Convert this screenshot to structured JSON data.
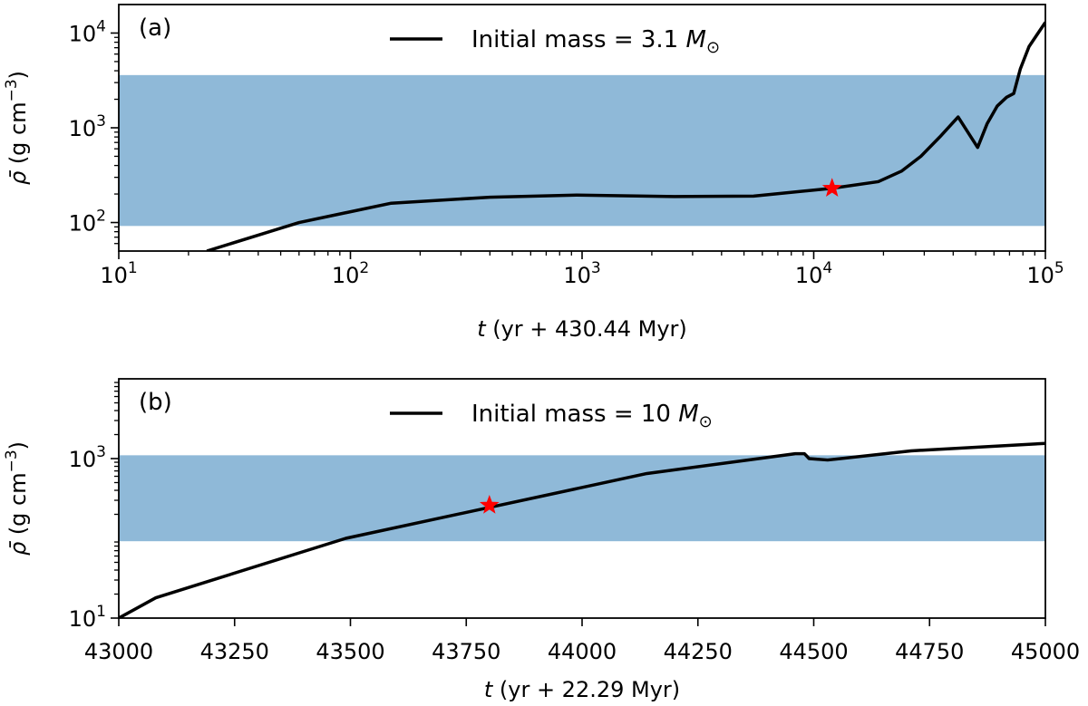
{
  "chart_data": [
    {
      "type": "line",
      "panel_label": "(a)",
      "x_scale": "log",
      "y_scale": "log",
      "xlim": [
        10,
        100000
      ],
      "ylim": [
        50,
        20000
      ],
      "xticks": [
        {
          "value": 10,
          "base": "10",
          "exp": "1"
        },
        {
          "value": 100,
          "base": "10",
          "exp": "2"
        },
        {
          "value": 1000,
          "base": "10",
          "exp": "3"
        },
        {
          "value": 10000,
          "base": "10",
          "exp": "4"
        },
        {
          "value": 100000,
          "base": "10",
          "exp": "5"
        }
      ],
      "yticks": [
        {
          "value": 100,
          "base": "10",
          "exp": "2"
        },
        {
          "value": 1000,
          "base": "10",
          "exp": "3"
        },
        {
          "value": 10000,
          "base": "10",
          "exp": "4"
        }
      ],
      "xlabel": {
        "var": "t",
        "rest": " (yr + 430.44 Myr)"
      },
      "ylabel": {
        "var": "ρ̄",
        "rest": " (g cm",
        "exp": "−3",
        "close": ")"
      },
      "legend": {
        "text": "Initial mass = 3.1 ",
        "var": "M",
        "sub": "⊙",
        "placement": "upper-center"
      },
      "band": {
        "y0": 92,
        "y1": 3600,
        "color": "#8fb9d8"
      },
      "series": [
        {
          "name": "Initial mass = 3.1 M⊙",
          "color": "#000000",
          "x": [
            24,
            60,
            150,
            400,
            950,
            2500,
            5500,
            12000,
            19000,
            24000,
            29000,
            35000,
            42000,
            51000,
            56000,
            62000,
            68000,
            73000,
            78000,
            85000,
            100000
          ],
          "y": [
            50,
            100,
            160,
            185,
            195,
            188,
            190,
            230,
            270,
            350,
            500,
            800,
            1300,
            620,
            1100,
            1700,
            2100,
            2300,
            4200,
            7200,
            13000
          ]
        }
      ],
      "marker": {
        "x": 12000,
        "y": 230,
        "color": "#ff0000",
        "symbol": "star"
      }
    },
    {
      "type": "line",
      "panel_label": "(b)",
      "x_scale": "linear",
      "y_scale": "log",
      "xlim": [
        43000,
        45000
      ],
      "ylim": [
        10,
        10000
      ],
      "xticks": [
        {
          "value": 43000,
          "label": "43000"
        },
        {
          "value": 43250,
          "label": "43250"
        },
        {
          "value": 43500,
          "label": "43500"
        },
        {
          "value": 43750,
          "label": "43750"
        },
        {
          "value": 44000,
          "label": "44000"
        },
        {
          "value": 44250,
          "label": "44250"
        },
        {
          "value": 44500,
          "label": "44500"
        },
        {
          "value": 44750,
          "label": "44750"
        },
        {
          "value": 45000,
          "label": "45000"
        }
      ],
      "yticks": [
        {
          "value": 10,
          "base": "10",
          "exp": "1"
        },
        {
          "value": 1000,
          "base": "10",
          "exp": "3"
        }
      ],
      "xlabel": {
        "var": "t",
        "rest": " (yr + 22.29 Myr)"
      },
      "ylabel": {
        "var": "ρ̄",
        "rest": " (g cm",
        "exp": "−3",
        "close": ")"
      },
      "legend": {
        "text": "Initial mass = 10 ",
        "var": "M",
        "sub": "⊙",
        "placement": "upper-center"
      },
      "band": {
        "y0": 92,
        "y1": 1100,
        "color": "#8fb9d8"
      },
      "series": [
        {
          "name": "Initial mass = 10 M⊙",
          "color": "#000000",
          "x": [
            43000,
            43080,
            43490,
            44140,
            44460,
            44480,
            44490,
            44530,
            44710,
            45000
          ],
          "y": [
            10,
            18,
            100,
            650,
            1150,
            1150,
            1000,
            960,
            1250,
            1550
          ]
        }
      ],
      "marker": {
        "x": 43800,
        "y": 260,
        "color": "#ff0000",
        "symbol": "star"
      }
    }
  ]
}
